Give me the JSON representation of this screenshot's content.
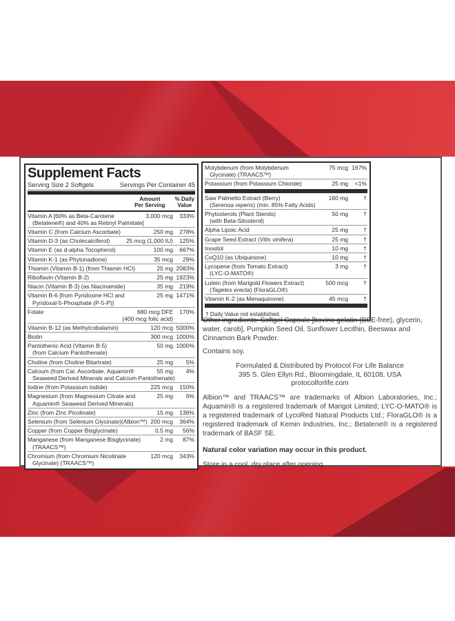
{
  "label": {
    "title": "Supplement Facts",
    "serving_size": "Serving Size 2 Softgels",
    "servings_per_container": "Servings Per Container 45",
    "amount_header": "Amount\nPer Serving",
    "dv_header": "% Daily\nValue",
    "dv_footnote": "† Daily Value not established."
  },
  "left_rows": [
    {
      "name": "Vitamin A [60% as Beta-Carotene\n(Betatene®) and 40% as Retinyl Palmitate]",
      "amount": "3,000 mcg",
      "dv": "333%"
    },
    {
      "name": "Vitamin C (from Calcium Ascorbate)",
      "amount": "250 mg",
      "dv": "278%"
    },
    {
      "name": "Vitamin D-3 (as Cholecalciferol)",
      "amount": "25 mcg (1,000 IU)",
      "dv": "125%"
    },
    {
      "name": "Vitamin E (as d-alpha Tocopherol)",
      "amount": "100 mg",
      "dv": "667%"
    },
    {
      "name": "Vitamin K-1 (as Phytonadione)",
      "amount": "35 mcg",
      "dv": "29%"
    },
    {
      "name": "Thiamin (Vitamin B-1) (from Thiamin HCl)",
      "amount": "25 mg",
      "dv": "2083%"
    },
    {
      "name": "Riboflavin (Vitamin B-2)",
      "amount": "25 mg",
      "dv": "1923%"
    },
    {
      "name": "Niacin (Vitamin B-3) (as Niacinamide)",
      "amount": "35 mg",
      "dv": "219%"
    },
    {
      "name": "Vitamin B-6 [from Pyridoxine HCl and\nPyridoxal-5-Phosphate (P-5-P)]",
      "amount": "25 mg",
      "dv": "1471%"
    },
    {
      "name": "Folate",
      "amount": "680 mcg DFE\n(400 mcg folic acid)",
      "dv": "170%",
      "tall": true
    },
    {
      "name": "Vitamin B-12 (as Methylcobalamin)",
      "amount": "120 mcg",
      "dv": "5000%"
    },
    {
      "name": "Biotin",
      "amount": "300 mcg",
      "dv": "1000%"
    },
    {
      "name": "Pantothenic Acid (Vitamin B-5)\n(from Calcium Pantothenate)",
      "amount": "50 mg",
      "dv": "1000%"
    },
    {
      "name": "Choline (from Choline Bitartrate)",
      "amount": "25 mg",
      "dv": "5%"
    },
    {
      "name": "Calcium (from Cal. Ascorbate, Aquamin®\nSeaweed Derived Minerals and Calcium Pantothenate)",
      "amount": "55 mg",
      "dv": "4%"
    },
    {
      "name": "Iodine (from Potassium Iodide)",
      "amount": "225 mcg",
      "dv": "150%"
    },
    {
      "name": "Magnesium (from Magnesium Citrate and\nAquamin® Seaweed Derived Minerals)",
      "amount": "25 mg",
      "dv": "6%"
    },
    {
      "name": "Zinc (from Zinc Picolinate)",
      "amount": "15 mg",
      "dv": "136%"
    },
    {
      "name": "Selenium (from Selenium Glycinate)(Albion™)",
      "amount": "200 mcg",
      "dv": "364%"
    },
    {
      "name": "Copper (from Copper Bisglycinate)",
      "amount": "0.5 mg",
      "dv": "56%"
    },
    {
      "name": "Manganese (from Manganese Bisglycinate)\n(TRAACS™)",
      "amount": "2 mg",
      "dv": "87%"
    },
    {
      "name": "Chromium (from Chromium Nicotinate\nGlycinate) (TRAACS™)",
      "amount": "120 mcg",
      "dv": "343%"
    }
  ],
  "right_rows": [
    {
      "name": "Molybdenum (from Molybdenum\nGlycinate) (TRAACS™)",
      "amount": "75 mcg",
      "dv": "167%"
    },
    {
      "name": "Potassium (from Potassium Chloride)",
      "amount": "25 mg",
      "dv": "&lt;1%",
      "bar_after": true
    },
    {
      "name": "Saw Palmetto Extract (Berry)\n(<i>Serenoa repens</i>) (min. 85% Fatty Acids)",
      "amount": "160 mg",
      "dv": "†"
    },
    {
      "name": "Phytosterols (Plant Sterols)\n(with Beta-Sitosterol)",
      "amount": "50 mg",
      "dv": "†"
    },
    {
      "name": "Alpha Lipoic Acid",
      "amount": "25 mg",
      "dv": "†"
    },
    {
      "name": "Grape Seed Extract (<i>Vitis vinifera</i>)",
      "amount": "25 mg",
      "dv": "†"
    },
    {
      "name": "Inositol",
      "amount": "10 mg",
      "dv": "†"
    },
    {
      "name": "CoQ10 (as Ubiquinone)",
      "amount": "10 mg",
      "dv": "†"
    },
    {
      "name": "Lycopene (from Tomato Extract)\n(LYC-O-MATO®)",
      "amount": "3 mg",
      "dv": "†"
    },
    {
      "name": "Lutein (from Marigold Flowers Extract)\n(<i>Tagetes erecta</i>) (FloraGLO®)",
      "amount": "500 mcg",
      "dv": "†"
    },
    {
      "name": "Vitamin K-2 (as Menaquinone)",
      "amount": "45 mcg",
      "dv": "†",
      "bar_after": true
    }
  ],
  "footer": {
    "other_ingredients": "Other ingredients: Softgel Capsule [bovine gelatin (BSE-free), glycerin, water, carob], Pumpkin Seed Oil, Sunflower Lecithin, Beeswax and Cinnamon Bark Powder.",
    "contains": "Contains soy.",
    "dist1": "Formulated & Distributed by Protocol For Life Balance",
    "dist2": "395 S. Glen Ellyn Rd., Bloomingdale, IL 60108, USA",
    "dist3": "protocolforlife.com",
    "trademarks": "Albion™ and TRAACS™ are trademarks of Albion Laboratories, Inc.; Aquamin® is a registered trademark of Marigot Limited;  LYC-O-MATO® is a registered trademark of LycoRed Natural Products Ltd.;  FloraGLO® is a registered trademark of Kemin Industries, Inc.;  Betatene® is a registered trademark of BASF SE.",
    "color_note": "Natural color variation may occur in this product.",
    "storage": "Store in a cool, dry place after opening."
  },
  "colors": {
    "red_bright": "#d93138",
    "red_medium": "#c2242d",
    "red_dark": "#9e1f2a",
    "panel_border": "#54545a",
    "table_border": "#2a2a2a",
    "divider_bar": "#2c2c2e",
    "table_text": "#2b2b2b",
    "footer_text": "#3c3c3e",
    "background": "#ffffff"
  }
}
